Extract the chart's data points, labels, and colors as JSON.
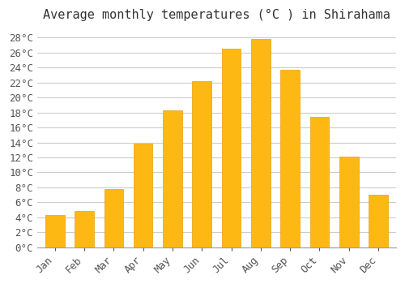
{
  "title": "Average monthly temperatures (°C ) in Shirahama",
  "months": [
    "Jan",
    "Feb",
    "Mar",
    "Apr",
    "May",
    "Jun",
    "Jul",
    "Aug",
    "Sep",
    "Oct",
    "Nov",
    "Dec"
  ],
  "temperatures": [
    4.3,
    4.8,
    7.8,
    13.8,
    18.3,
    22.2,
    26.5,
    27.8,
    23.7,
    17.4,
    12.1,
    7.0
  ],
  "bar_color_main": "#FDB813",
  "bar_color_edge": "#E8A010",
  "bar_color_light": "#FDC840",
  "ylim": [
    0,
    29
  ],
  "ytick_step": 2,
  "background_color": "#ffffff",
  "grid_color": "#cccccc",
  "title_fontsize": 11,
  "tick_fontsize": 9,
  "font_family": "monospace"
}
